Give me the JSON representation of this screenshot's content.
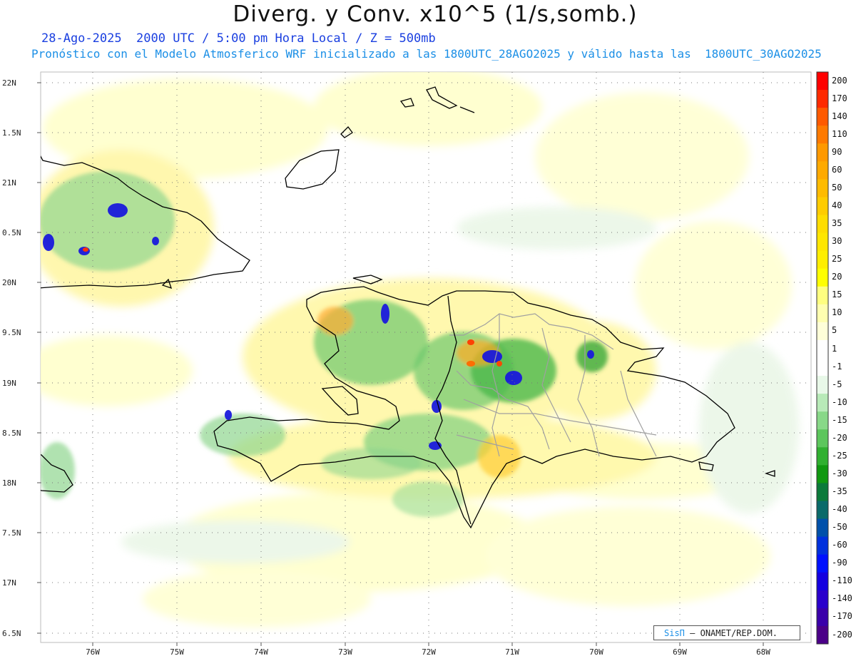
{
  "header": {
    "title": "Diverg. y Conv. x10^5 (1/s,somb.)",
    "subtitle1": "28-Ago-2025  2000 UTC / 5:00 pm Hora Local / Z = 500mb",
    "subtitle2": "Pronóstico con el Modelo Atmosferico WRF inicializado a las 1800UTC_28AGO2025 y válido hasta las  1800UTC_30AGO2025"
  },
  "map": {
    "lat_labels": [
      "22N",
      "1.5N",
      "21N",
      "0.5N",
      "20N",
      "9.5N",
      "19N",
      "8.5N",
      "18N",
      "7.5N",
      "17N",
      "6.5N"
    ],
    "lon_labels": [
      "76W",
      "75W",
      "74W",
      "73W",
      "72W",
      "71W",
      "70W",
      "69W",
      "68W"
    ]
  },
  "colorbar": {
    "levels": [
      "200",
      "170",
      "140",
      "110",
      "90",
      "60",
      "50",
      "40",
      "35",
      "30",
      "25",
      "20",
      "15",
      "10",
      "5",
      "1",
      "-1",
      "-5",
      "-10",
      "-15",
      "-20",
      "-25",
      "-30",
      "-35",
      "-40",
      "-50",
      "-60",
      "-90",
      "-110",
      "-140",
      "-170",
      "-200"
    ],
    "colors": [
      "#ff0000",
      "#ff2a00",
      "#ff5a00",
      "#ff7a00",
      "#ff9900",
      "#ffaa00",
      "#ffbb00",
      "#ffcc00",
      "#ffdd00",
      "#ffe600",
      "#ffee00",
      "#ffff00",
      "#ffff80",
      "#ffffb0",
      "#ffffd8",
      "#ffffff",
      "#ffffff",
      "#e8f8e8",
      "#b8eab8",
      "#88d888",
      "#5cc65c",
      "#30b030",
      "#109810",
      "#0b7a3a",
      "#0a6a6a",
      "#0050aa",
      "#0030dd",
      "#0010ff",
      "#1400e0",
      "#2a00cc",
      "#3a00aa",
      "#4b0088"
    ]
  },
  "credit": {
    "brand": "SisΠ",
    "text": "– ONAMET/REP.DOM."
  }
}
